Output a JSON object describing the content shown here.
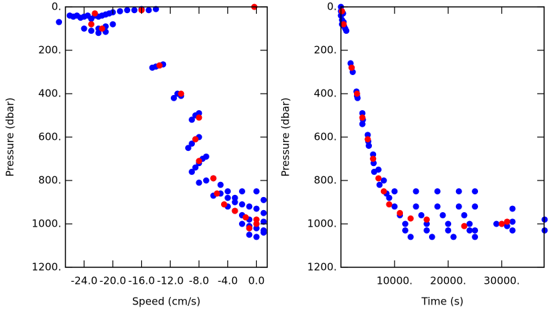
{
  "chart_data": [
    {
      "type": "scatter",
      "xlabel": "Speed (cm/s)",
      "ylabel": "Pressure (dbar)",
      "invert_y": true,
      "xlim": [
        -26.6,
        1.5
      ],
      "ylim": [
        0,
        1200
      ],
      "xticks": [
        {
          "value": -24,
          "label": "-24.0"
        },
        {
          "value": -20,
          "label": "-20.0"
        },
        {
          "value": -16,
          "label": "-16.0"
        },
        {
          "value": -12,
          "label": "-12.0"
        },
        {
          "value": -8,
          "label": "-8.0"
        },
        {
          "value": -4,
          "label": "-4.0"
        },
        {
          "value": 0,
          "label": "0.0"
        }
      ],
      "yticks": [
        {
          "value": 0,
          "label": "0."
        },
        {
          "value": 200,
          "label": "200."
        },
        {
          "value": 400,
          "label": "400."
        },
        {
          "value": 600,
          "label": "600."
        },
        {
          "value": 800,
          "label": "800."
        },
        {
          "value": 1000,
          "label": "1000."
        },
        {
          "value": 1200,
          "label": "1200."
        }
      ],
      "series": [
        {
          "color": "#0000ff",
          "x": [
            -27.5,
            -26,
            -25.5,
            -25,
            -24.5,
            -24,
            -23.5,
            -23,
            -22.5,
            -22,
            -21.5,
            -21,
            -20.5,
            -20,
            -19,
            -18,
            -17,
            -16,
            -15,
            -14,
            -24,
            -23,
            -22,
            -21,
            -20,
            -22,
            -21,
            -14.5,
            -14,
            -13.5,
            -13,
            -11.5,
            -11,
            -10.5,
            -9,
            -8.5,
            -8,
            -9.5,
            -9,
            -8.5,
            -8,
            -9,
            -8.5,
            -8,
            -7.5,
            -7,
            -8,
            -7,
            -6,
            -5,
            -4,
            -3,
            -2,
            -6,
            -5,
            -4,
            -3,
            -2,
            -1,
            0,
            1,
            -4,
            -3,
            -2,
            -1,
            0,
            1,
            -2,
            -1,
            0,
            1,
            -1,
            0,
            1,
            -2,
            -1,
            0,
            1
          ],
          "values": [
            70,
            40,
            45,
            40,
            50,
            45,
            40,
            55,
            40,
            45,
            40,
            35,
            30,
            25,
            20,
            15,
            15,
            10,
            15,
            10,
            100,
            110,
            100,
            90,
            80,
            120,
            115,
            280,
            275,
            270,
            265,
            420,
            400,
            410,
            520,
            500,
            490,
            650,
            630,
            610,
            600,
            760,
            740,
            720,
            700,
            690,
            810,
            800,
            790,
            820,
            850,
            880,
            850,
            870,
            860,
            880,
            900,
            910,
            920,
            930,
            950,
            920,
            940,
            960,
            980,
            1000,
            990,
            1000,
            1010,
            1020,
            1030,
            1050,
            1060,
            1040,
            960,
            1020,
            850,
            890
          ]
        },
        {
          "color": "#ff0000",
          "x": [
            -22.5,
            -23,
            -21.5,
            -16,
            -0.3,
            -13.5,
            -10.5,
            -8,
            -8.5,
            -8,
            -6,
            -5.5,
            -4.5,
            -3,
            -1.5,
            0,
            -1,
            0
          ],
          "values": [
            30,
            80,
            100,
            15,
            0,
            270,
            400,
            510,
            610,
            710,
            790,
            860,
            910,
            940,
            970,
            980,
            1020,
            1000
          ]
        }
      ]
    },
    {
      "type": "scatter",
      "xlabel": "Time (s)",
      "ylabel": "Pressure (dbar)",
      "invert_y": true,
      "xlim": [
        0,
        37900
      ],
      "ylim": [
        0,
        1200
      ],
      "xticks": [
        {
          "value": 10000,
          "label": "10000."
        },
        {
          "value": 20000,
          "label": "20000."
        },
        {
          "value": 30000,
          "label": "30000."
        }
      ],
      "yticks": [
        {
          "value": 0,
          "label": "0."
        },
        {
          "value": 200,
          "label": "200."
        },
        {
          "value": 400,
          "label": "400."
        },
        {
          "value": 600,
          "label": "600."
        },
        {
          "value": 800,
          "label": "800."
        },
        {
          "value": 1000,
          "label": "1000."
        },
        {
          "value": 1200,
          "label": "1200."
        }
      ],
      "series": [
        {
          "color": "#0000ff",
          "x": [
            0,
            0,
            0,
            200,
            200,
            400,
            500,
            600,
            800,
            1000,
            1800,
            2000,
            2200,
            2900,
            3000,
            3100,
            4000,
            4100,
            4000,
            5000,
            5100,
            5200,
            6000,
            6100,
            6200,
            6000,
            7000,
            7200,
            8000,
            8500,
            9000,
            10000,
            14000,
            18000,
            22000,
            25000,
            10000,
            14000,
            18000,
            22000,
            25000,
            11000,
            15000,
            19000,
            23000,
            12000,
            16000,
            20000,
            24000,
            12000,
            16000,
            20000,
            24000,
            25000,
            13000,
            17000,
            21000,
            25000,
            29000,
            30000,
            31000,
            32000,
            32000,
            32000,
            38000,
            38000
          ],
          "values": [
            0,
            20,
            40,
            60,
            80,
            30,
            70,
            90,
            100,
            110,
            260,
            280,
            300,
            390,
            410,
            420,
            490,
            520,
            540,
            590,
            620,
            640,
            680,
            720,
            760,
            700,
            750,
            820,
            800,
            860,
            880,
            850,
            850,
            850,
            850,
            850,
            920,
            920,
            920,
            920,
            920,
            960,
            960,
            960,
            960,
            1000,
            1000,
            1000,
            1000,
            1030,
            1030,
            1030,
            1030,
            1030,
            1060,
            1060,
            1060,
            1060,
            1000,
            1000,
            1010,
            930,
            990,
            1030,
            980,
            1030
          ]
        },
        {
          "color": "#ff0000",
          "x": [
            200,
            500,
            2000,
            3000,
            4000,
            5000,
            6000,
            7000,
            8000,
            9000,
            11000,
            13000,
            16000,
            23000,
            30000,
            31000
          ],
          "values": [
            20,
            80,
            280,
            400,
            510,
            610,
            700,
            790,
            850,
            910,
            950,
            975,
            980,
            1010,
            1000,
            990
          ]
        }
      ]
    }
  ]
}
